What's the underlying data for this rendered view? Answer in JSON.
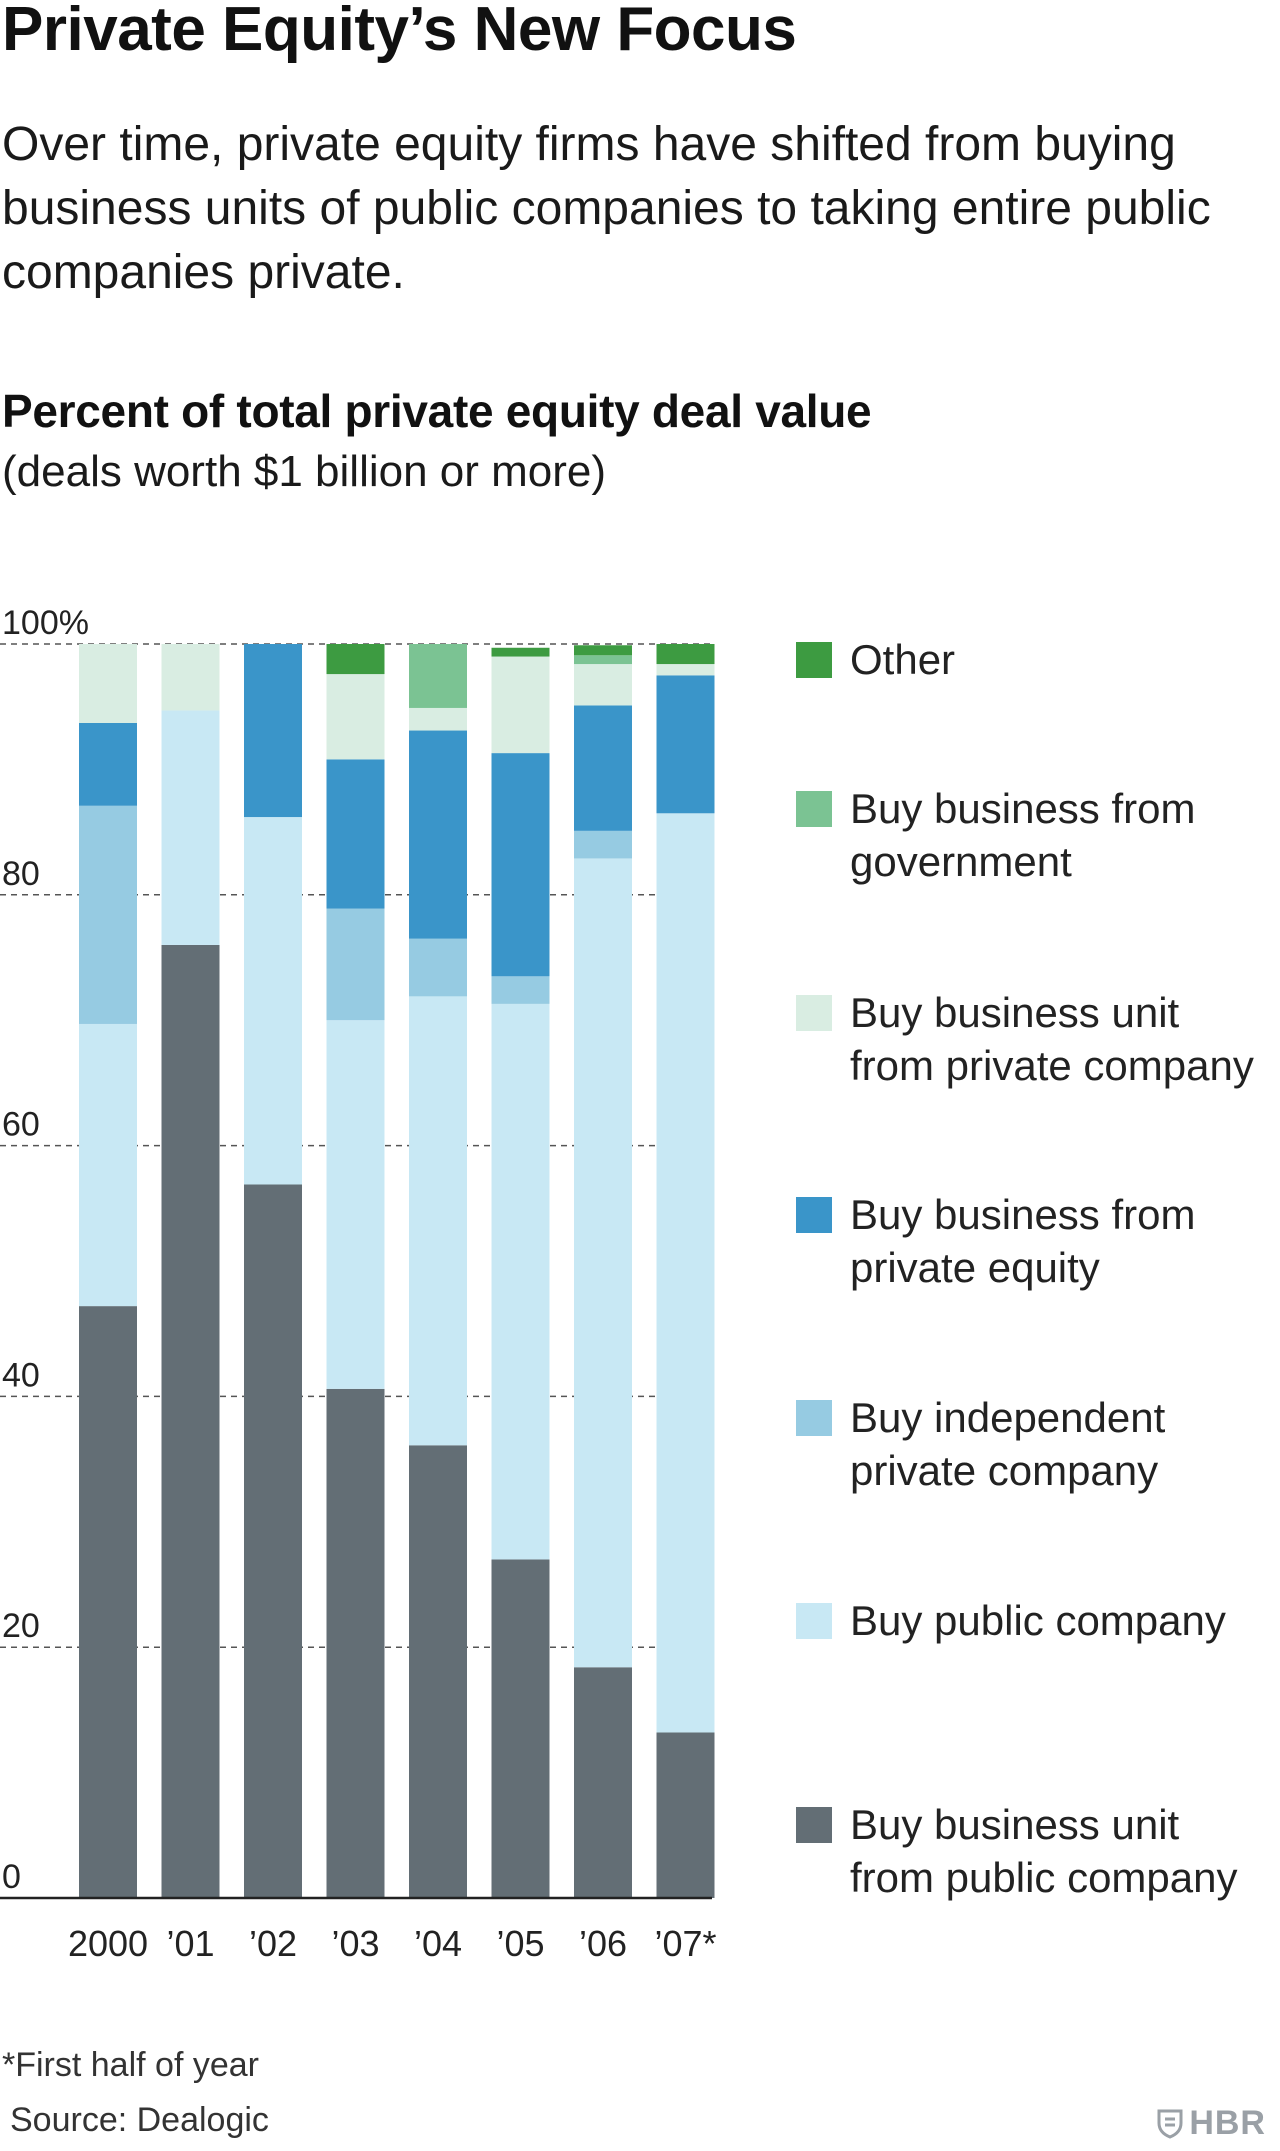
{
  "header": {
    "title": "Private Equity’s New Focus",
    "subtitle": "Over time, private equity firms have shifted from buying business units of public companies to taking entire public companies private."
  },
  "chart_header": {
    "title": "Percent of total private equity deal value",
    "subtitle": "(deals worth $1 billion or more)"
  },
  "chart_data": {
    "type": "bar",
    "stacked": true,
    "title": "Percent of total private equity deal value",
    "subtitle": "(deals worth $1 billion or more)",
    "xlabel": "",
    "ylabel": "",
    "ylim": [
      0,
      100
    ],
    "yticks": [
      "0",
      "20",
      "40",
      "60",
      "80",
      "100%"
    ],
    "ytick_values": [
      0,
      20,
      40,
      60,
      80,
      100
    ],
    "grid": true,
    "legend_position": "right",
    "categories": [
      "2000",
      "’01",
      "’02",
      "’03",
      "’04",
      "’05",
      "’06",
      "’07*"
    ],
    "series": [
      {
        "name": "Buy business unit from public company",
        "color": "#636e75",
        "values": [
          47.2,
          76.0,
          56.9,
          40.6,
          36.1,
          27.0,
          18.4,
          13.2
        ]
      },
      {
        "name": "Buy public company",
        "color": "#c8e8f4",
        "values": [
          22.5,
          18.7,
          29.3,
          29.4,
          35.8,
          44.3,
          64.5,
          73.3
        ]
      },
      {
        "name": "Buy independent private company",
        "color": "#96cbe2",
        "values": [
          17.4,
          0,
          0,
          8.9,
          4.6,
          2.2,
          2.2,
          0
        ]
      },
      {
        "name": "Buy business from private equity",
        "color": "#3a95c9",
        "values": [
          6.6,
          0,
          13.8,
          11.9,
          16.6,
          17.8,
          10.0,
          11.0
        ]
      },
      {
        "name": "Buy business unit from private company",
        "color": "#d9ede2",
        "values": [
          6.3,
          5.3,
          0,
          6.8,
          1.8,
          7.7,
          3.3,
          0.9
        ]
      },
      {
        "name": "Buy business from government",
        "color": "#7bc393",
        "values": [
          0,
          0,
          0,
          0,
          5.1,
          0,
          0.7,
          0
        ]
      },
      {
        "name": "Other",
        "color": "#3d9b41",
        "values": [
          0,
          0,
          0,
          2.4,
          0,
          0.7,
          0.8,
          1.6
        ]
      }
    ]
  },
  "legend": {
    "items": [
      {
        "lines": [
          "Other"
        ],
        "color": "#3d9b41"
      },
      {
        "lines": [
          "Buy business from",
          "government"
        ],
        "color": "#7bc393"
      },
      {
        "lines": [
          "Buy business unit",
          "from private company"
        ],
        "color": "#d9ede2"
      },
      {
        "lines": [
          "Buy business from",
          "private equity"
        ],
        "color": "#3a95c9"
      },
      {
        "lines": [
          "Buy independent",
          "private company"
        ],
        "color": "#96cbe2"
      },
      {
        "lines": [
          "Buy public company"
        ],
        "color": "#c8e8f4"
      },
      {
        "lines": [
          "Buy business unit",
          "from public company"
        ],
        "color": "#636e75"
      }
    ]
  },
  "footer": {
    "footnote": "*First half of year",
    "source": "Source: Dealogic",
    "brand": "HBR",
    "brand_icon": "shield-icon"
  }
}
